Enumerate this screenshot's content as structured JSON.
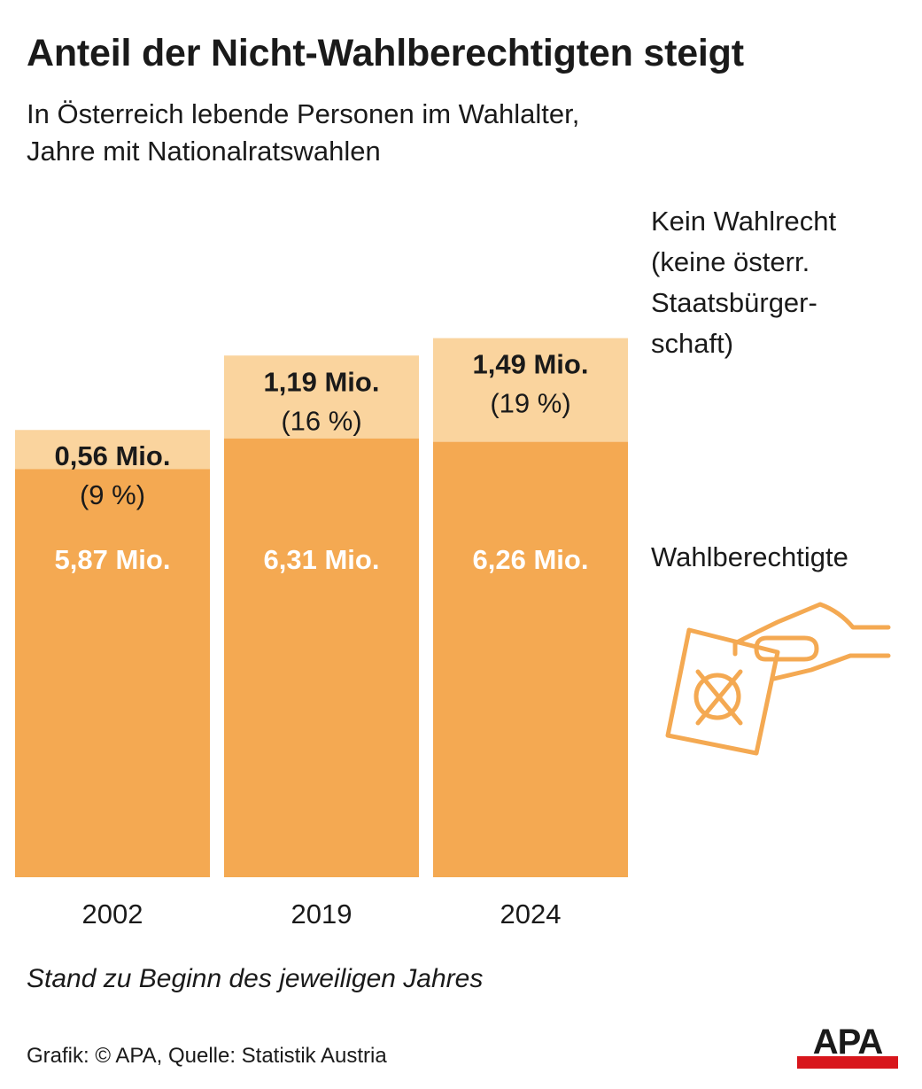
{
  "title": "Anteil der Nicht-Wahlberechtigten steigt",
  "subtitle": [
    "In Österreich lebende Personen im Wahlalter,",
    "Jahre mit Nationalratswahlen"
  ],
  "legend": {
    "no_vote": [
      "Kein Wahlrecht",
      "(keine österr.",
      "Staatsbürger-",
      "schaft)"
    ],
    "eligible": "Wahlberechtigte"
  },
  "note": "Stand zu Beginn des jeweiligen Jahres",
  "source": "Grafik: © APA, Quelle: Statistik Austria",
  "logo": "APA",
  "icon": "hand-ballot-icon",
  "colors": {
    "eligible": "#f4a952",
    "no_vote": "#fad49e",
    "accent": "#d8161c",
    "text": "#1a1a1a"
  },
  "chart_data": {
    "type": "bar",
    "stacked": true,
    "categories": [
      "2002",
      "2019",
      "2024"
    ],
    "series": [
      {
        "name": "Wahlberechtigte",
        "values": [
          5.87,
          6.31,
          6.26
        ],
        "labels": [
          "5,87 Mio.",
          "6,31 Mio.",
          "6,26 Mio."
        ]
      },
      {
        "name": "Kein Wahlrecht",
        "values": [
          0.56,
          1.19,
          1.49
        ],
        "labels": [
          "0,56 Mio.",
          "1,19 Mio.",
          "1,49 Mio."
        ],
        "percent_labels": [
          "(9 %)",
          "(16 %)",
          "(19 %)"
        ]
      }
    ],
    "unit": "Mio."
  }
}
